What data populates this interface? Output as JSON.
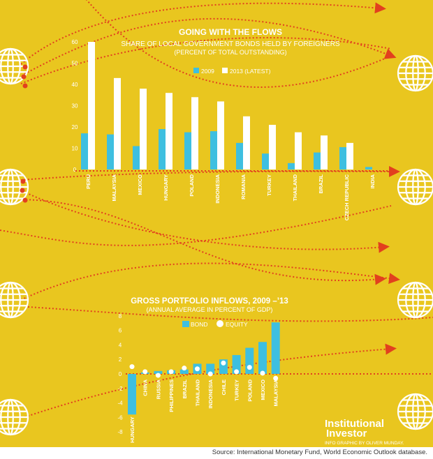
{
  "colors": {
    "background": "#E9C61F",
    "bar_2009": "#3EBFE0",
    "bar_2013": "#FFFFFF",
    "bond": "#3EBFE0",
    "equity": "#FFFFFF",
    "flow_lines": "#E2401E"
  },
  "icons": [
    "globe-icon",
    "arrow-head-icon"
  ],
  "chart_data": [
    {
      "type": "bar",
      "title": "GOING WITH THE FLOWS",
      "subtitle": "SHARE OF LOCAL GOVERNMENT BONDS HELD BY FOREIGNERS",
      "subtitle2": "(PERCENT OF TOTAL OUTSTANDING)",
      "categories": [
        "PERU",
        "MALAYSIA",
        "MEXICO",
        "HUNGARY",
        "POLAND",
        "INDONESIA",
        "ROMANIA",
        "TURKEY",
        "THAILAND",
        "BRAZIL",
        "CZECH REPUBLIC",
        "INDIA"
      ],
      "series": [
        {
          "name": "2009",
          "values": [
            17,
            16.5,
            11,
            19,
            17.5,
            18,
            12.5,
            7.5,
            3,
            8,
            10.5,
            1.2
          ]
        },
        {
          "name": "2013 (LATEST)",
          "values": [
            60,
            43,
            38,
            36,
            34,
            32,
            25,
            21,
            17.5,
            16,
            12.5,
            0
          ]
        }
      ],
      "yticks": [
        "0",
        "10",
        "20",
        "30",
        "40",
        "50",
        "60"
      ],
      "ylim": [
        0,
        60
      ],
      "legend": "top-center",
      "grid": false
    },
    {
      "type": "bar",
      "title": "GROSS PORTFOLIO INFLOWS, 2009 –’13",
      "subtitle": "(ANNUAL AVERAGE IN PERCENT OF GDP)",
      "categories": [
        "HUNGARY",
        "CHINA",
        "RUSSIA",
        "PHILIPPINES",
        "BRAZIL",
        "THAILAND",
        "INDONESIA",
        "CHILE",
        "TURKEY",
        "POLAND",
        "MEXICO",
        "MALAYSIA"
      ],
      "series": [
        {
          "name": "BOND",
          "mark": "bar",
          "values": [
            -5.6,
            0.2,
            0.4,
            0.5,
            0.6,
            1.4,
            1.4,
            2.0,
            2.6,
            3.6,
            4.4,
            7.1
          ]
        },
        {
          "name": "EQUITY",
          "mark": "dot",
          "values": [
            1.0,
            0.3,
            -0.2,
            0.3,
            0.8,
            0.7,
            0.0,
            1.5,
            0.3,
            0.9,
            0.1,
            -0.6
          ]
        }
      ],
      "yticks": [
        "8",
        "6",
        "4",
        "2",
        "0",
        "-2",
        "-4",
        "-6",
        "-8"
      ],
      "ylim": [
        -8,
        8
      ],
      "legend": "top-center",
      "grid": false
    }
  ],
  "logo": {
    "line1": "Institutional",
    "line2": "Investor"
  },
  "credit": "INFO GRAPHIC BY OLIVER MUNDAY.",
  "source": "Source: International Monetary Fund, World Economic Outlook database."
}
